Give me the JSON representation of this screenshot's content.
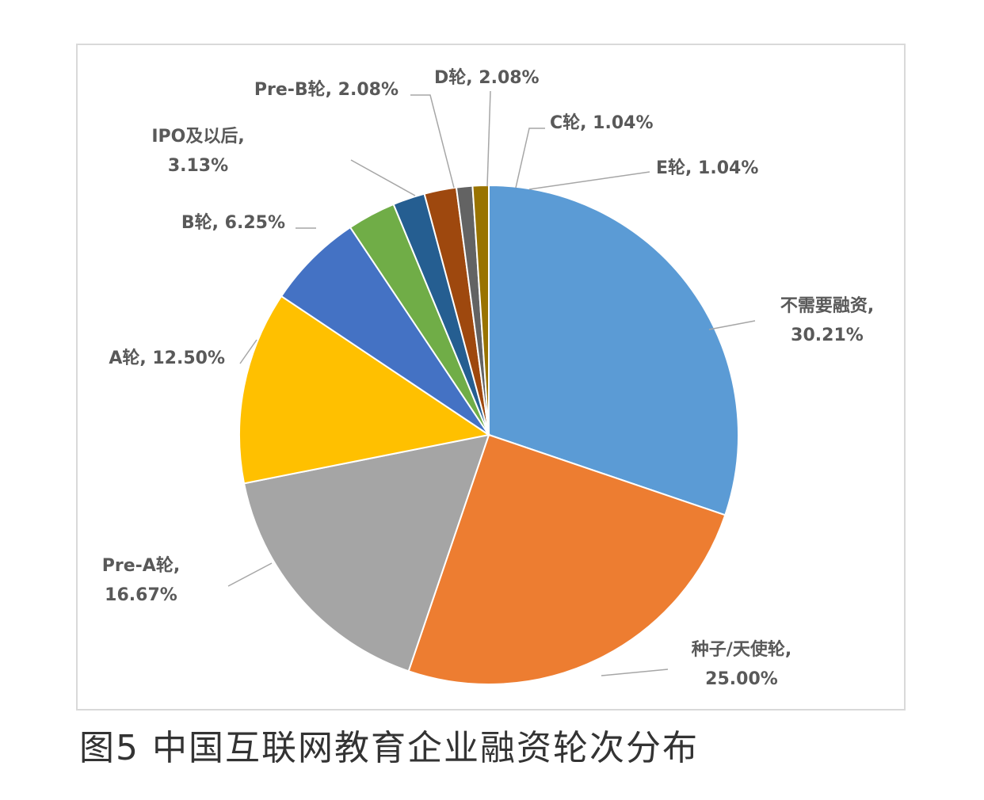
{
  "caption": "图5  中国互联网教育企业融资轮次分布",
  "chart_data": {
    "type": "pie",
    "start_angle_deg": 0,
    "direction": "clockwise",
    "slices": [
      {
        "label": "不需要融资",
        "value": 30.21,
        "display": "30.21%",
        "color": "#5b9bd5"
      },
      {
        "label": "种子/天使轮",
        "value": 25.0,
        "display": "25.00%",
        "color": "#ed7d31"
      },
      {
        "label": "Pre-A轮",
        "value": 16.67,
        "display": "16.67%",
        "color": "#a5a5a5"
      },
      {
        "label": "A轮",
        "value": 12.5,
        "display": "12.50%",
        "color": "#ffc000"
      },
      {
        "label": "B轮",
        "value": 6.25,
        "display": "6.25%",
        "color": "#4472c4"
      },
      {
        "label": "IPO及以后",
        "value": 3.13,
        "display": "3.13%",
        "color": "#70ad47"
      },
      {
        "label": "Pre-B轮",
        "value": 2.08,
        "display": "2.08%",
        "color": "#255e91"
      },
      {
        "label": "D轮",
        "value": 2.08,
        "display": "2.08%",
        "color": "#9e480e"
      },
      {
        "label": "C轮",
        "value": 1.04,
        "display": "1.04%",
        "color": "#636363"
      },
      {
        "label": "E轮",
        "value": 1.04,
        "display": "1.04%",
        "color": "#997300"
      }
    ]
  }
}
